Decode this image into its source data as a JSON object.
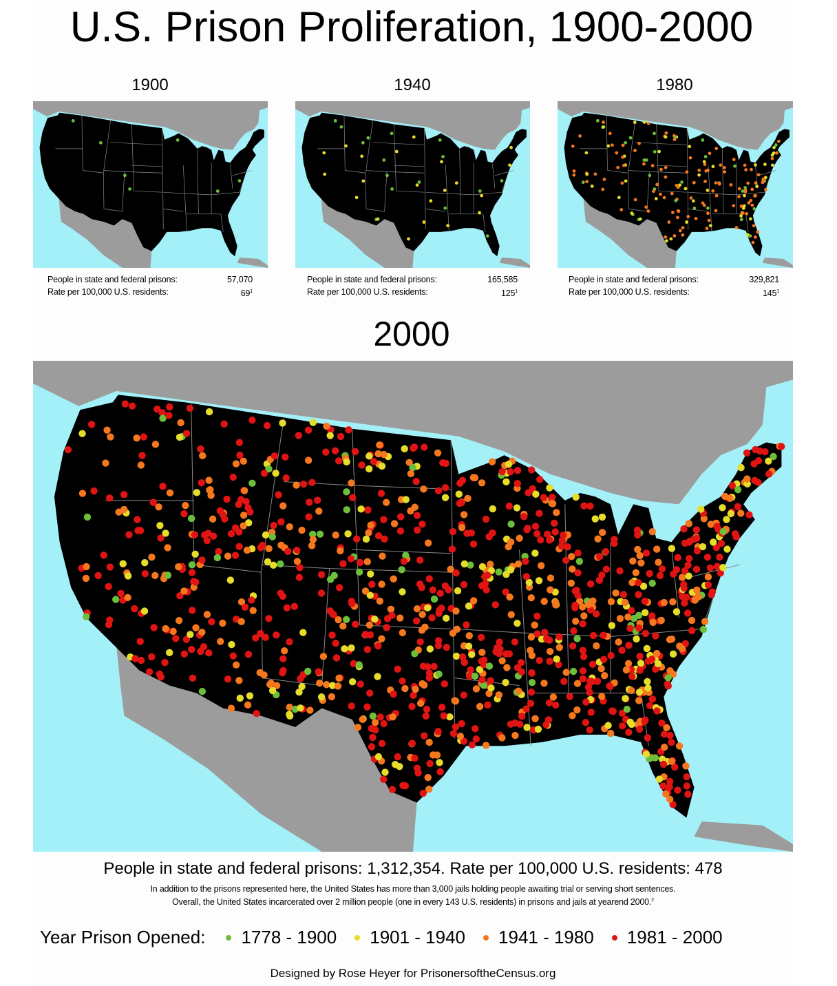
{
  "title": "U.S. Prison Proliferation, 1900-2000",
  "colors": {
    "ocean": "#a4f0f8",
    "land": "#9c9c9c",
    "usa": "#000000",
    "borders": "#888888"
  },
  "legend": {
    "label": "Year Prison Opened:",
    "items": [
      {
        "range": "1778 - 1900",
        "color": "#6cbf3a"
      },
      {
        "range": "1901 - 1940",
        "color": "#e6dc2a"
      },
      {
        "range": "1941 - 1980",
        "color": "#f6781e"
      },
      {
        "range": "1981 - 2000",
        "color": "#e11414"
      }
    ]
  },
  "maps": [
    {
      "year": "1900",
      "prisons_label": "People in state and federal prisons:",
      "prisons_value": "57,070",
      "rate_label": "Rate per 100,000 U.S. residents:",
      "rate_value": "69",
      "rate_note": "1",
      "eras_shown": 1,
      "density": 0.06
    },
    {
      "year": "1940",
      "prisons_label": "People in state and federal prisons:",
      "prisons_value": "165,585",
      "rate_label": "Rate per 100,000 U.S. residents:",
      "rate_value": "125",
      "rate_note": "1",
      "eras_shown": 2,
      "density": 0.17
    },
    {
      "year": "1980",
      "prisons_label": "People in state and federal prisons:",
      "prisons_value": "329,821",
      "rate_label": "Rate per 100,000 U.S. residents:",
      "rate_value": "145",
      "rate_note": "1",
      "eras_shown": 3,
      "density": 0.36
    }
  ],
  "main_map": {
    "year": "2000",
    "stats": "People in state and federal prisons:  1,312,354.  Rate per 100,000 U.S. residents:  478",
    "note_line1": "In addition to the prisons represented here, the United States has more than 3,000 jails holding people awaiting trial or serving short sentences.",
    "note_line2": "Overall, the United States incarcerated over 2 million people (one in every 143 U.S. residents) in prisons and jails at yearend 2000.",
    "note_ref": "2",
    "eras_shown": 4,
    "density": 1.0
  },
  "credit": "Designed by Rose Heyer for PrisonersoftheCensus.org"
}
